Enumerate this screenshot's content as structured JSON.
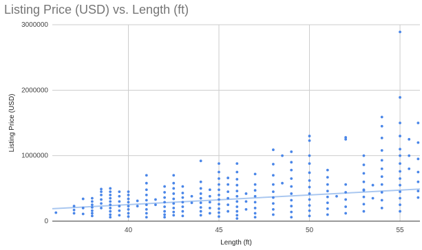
{
  "chart_data": {
    "type": "scatter",
    "title": "Listing Price (USD) vs. Length (ft)",
    "xlabel": "Length (ft)",
    "ylabel": "Listing Price (USD)",
    "xlim": [
      35.8,
      56.1
    ],
    "ylim": [
      0,
      3000000
    ],
    "x_ticks": [
      40,
      45,
      50,
      55
    ],
    "y_ticks": [
      0,
      1000000,
      2000000,
      3000000
    ],
    "x_tick_labels": [
      "40",
      "45",
      "50",
      "55"
    ],
    "y_tick_labels": [
      "0",
      "1000000",
      "2000000",
      "3000000"
    ],
    "grid": true,
    "legend": "none",
    "point_color": "#4a86e8",
    "trendline_color": "#a9c7f0",
    "trendline": {
      "x": [
        35.8,
        56.1
      ],
      "y": [
        190000,
        490000
      ]
    },
    "series": [
      {
        "x": [
          36,
          37,
          37,
          37,
          37.5,
          37.5,
          37.5,
          38,
          38,
          38,
          38,
          38,
          38,
          38,
          38.5,
          38.5,
          38.5,
          38.5,
          38.5,
          38.5,
          39,
          39,
          39,
          39,
          39,
          39,
          39,
          39,
          39,
          39,
          39.5,
          39.5,
          39.5,
          39.5,
          39.5,
          39.5,
          40,
          40,
          40,
          40,
          40,
          40,
          40,
          40,
          40.5,
          40.5,
          41,
          41,
          41,
          41,
          41,
          41,
          41,
          41,
          41,
          41.5,
          41.5,
          42,
          42,
          42,
          42,
          42,
          42,
          42,
          42,
          42.5,
          42.5,
          42.5,
          42.5,
          42.5,
          42.5,
          42.5,
          42.5,
          42.5,
          43,
          43,
          43,
          43,
          43,
          43,
          43,
          43.5,
          43.5,
          44,
          44,
          44,
          44,
          44,
          44,
          44,
          44,
          44,
          44.5,
          44.5,
          44.5,
          44.5,
          44.5,
          45,
          45,
          45,
          45,
          45,
          45,
          45,
          45,
          45,
          45,
          45,
          45.5,
          45.5,
          45.5,
          45.5,
          45.5,
          45.5,
          46,
          46,
          46,
          46,
          46,
          46,
          46,
          46,
          46,
          46,
          46,
          46.5,
          46.5,
          46.5,
          47,
          47,
          47,
          47,
          47,
          47,
          47,
          47,
          48,
          48,
          48,
          48,
          48,
          48,
          48,
          48,
          48,
          48.5,
          48.5,
          49,
          49,
          49,
          49,
          49,
          49,
          49,
          49,
          49,
          49,
          50,
          50,
          50,
          50,
          50,
          50,
          50,
          50,
          50,
          50,
          50,
          50,
          51,
          51,
          51,
          51,
          51,
          51,
          51,
          51,
          51.5,
          52,
          52,
          52,
          52,
          52,
          52,
          52,
          53,
          53,
          53,
          53,
          53,
          53,
          53,
          53,
          53,
          53.5,
          53.5,
          54,
          54,
          54,
          54,
          54,
          54,
          54,
          54,
          54,
          54,
          54,
          55,
          55,
          55,
          55,
          55,
          55,
          55,
          55,
          55,
          55,
          55,
          55,
          55,
          55,
          55.5,
          55.5,
          55.5,
          56,
          56,
          56,
          56,
          56,
          56,
          56
        ],
        "y": [
          130000,
          120000,
          170000,
          230000,
          110000,
          200000,
          340000,
          80000,
          120000,
          160000,
          210000,
          250000,
          300000,
          350000,
          200000,
          270000,
          330000,
          400000,
          450000,
          490000,
          60000,
          100000,
          150000,
          200000,
          250000,
          300000,
          350000,
          400000,
          450000,
          500000,
          90000,
          160000,
          230000,
          300000,
          380000,
          450000,
          70000,
          120000,
          180000,
          230000,
          290000,
          340000,
          400000,
          450000,
          230000,
          310000,
          60000,
          120000,
          180000,
          250000,
          320000,
          400000,
          480000,
          580000,
          700000,
          250000,
          330000,
          60000,
          100000,
          150000,
          220000,
          290000,
          360000,
          440000,
          530000,
          90000,
          140000,
          200000,
          270000,
          340000,
          420000,
          500000,
          580000,
          700000,
          80000,
          150000,
          220000,
          290000,
          360000,
          430000,
          530000,
          280000,
          380000,
          90000,
          150000,
          210000,
          280000,
          350000,
          420000,
          500000,
          600000,
          920000,
          120000,
          200000,
          290000,
          380000,
          480000,
          70000,
          130000,
          190000,
          260000,
          330000,
          400000,
          480000,
          560000,
          650000,
          750000,
          880000,
          150000,
          250000,
          350000,
          450000,
          560000,
          660000,
          40000,
          90000,
          150000,
          220000,
          300000,
          380000,
          460000,
          550000,
          640000,
          750000,
          880000,
          180000,
          300000,
          420000,
          60000,
          120000,
          200000,
          290000,
          380000,
          470000,
          560000,
          720000,
          100000,
          180000,
          270000,
          360000,
          450000,
          560000,
          700000,
          870000,
          1090000,
          580000,
          1000000,
          60000,
          140000,
          230000,
          320000,
          420000,
          530000,
          650000,
          780000,
          900000,
          1060000,
          80000,
          160000,
          240000,
          330000,
          420000,
          520000,
          620000,
          740000,
          880000,
          1000000,
          1230000,
          1300000,
          100000,
          190000,
          280000,
          370000,
          460000,
          560000,
          670000,
          780000,
          380000,
          120000,
          220000,
          330000,
          440000,
          560000,
          1250000,
          1280000,
          150000,
          260000,
          370000,
          480000,
          600000,
          730000,
          860000,
          1000000,
          470000,
          350000,
          550000,
          200000,
          320000,
          440000,
          560000,
          680000,
          800000,
          930000,
          1080000,
          1270000,
          1450000,
          1590000,
          150000,
          250000,
          350000,
          450000,
          550000,
          650000,
          760000,
          880000,
          1000000,
          1100000,
          1300000,
          1500000,
          1890000,
          2890000,
          800000,
          1000000,
          1250000,
          360000,
          460000,
          600000,
          750000,
          950000,
          1200000,
          1500000
        ]
      }
    ]
  }
}
